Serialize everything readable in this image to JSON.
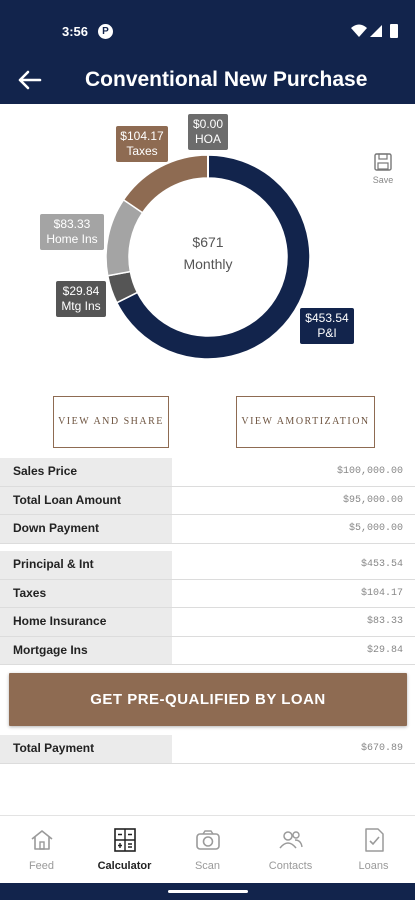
{
  "status_bar": {
    "time": "3:56",
    "app_icon": "P"
  },
  "header": {
    "title": "Conventional New Purchase"
  },
  "chart_data": {
    "type": "pie",
    "style": "donut",
    "center_value": "$671",
    "center_label": "Monthly",
    "slices": [
      {
        "name": "P&I",
        "label": "$453.54",
        "value": 453.54,
        "color": "#12244c"
      },
      {
        "name": "Mtg Ins",
        "label": "$29.84",
        "value": 29.84,
        "color": "#555555"
      },
      {
        "name": "Home Ins",
        "label": "$83.33",
        "value": 83.33,
        "color": "#a4a4a4"
      },
      {
        "name": "Taxes",
        "label": "$104.17",
        "value": 104.17,
        "color": "#8e6b52"
      },
      {
        "name": "HOA",
        "label": "$0.00",
        "value": 0.0,
        "color": "#6c6c6c"
      }
    ]
  },
  "save": {
    "label": "Save"
  },
  "actions": {
    "share_label": "VIEW AND SHARE",
    "amort_label": "VIEW AMORTIZATION"
  },
  "loan_table": [
    {
      "label": "Sales Price",
      "value": "$100,000.00"
    },
    {
      "label": "Total Loan Amount",
      "value": "$95,000.00"
    },
    {
      "label": "Down Payment",
      "value": "$5,000.00"
    }
  ],
  "payment_table": [
    {
      "label": "Principal & Int",
      "value": "$453.54"
    },
    {
      "label": "Taxes",
      "value": "$104.17"
    },
    {
      "label": "Home Insurance",
      "value": "$83.33"
    },
    {
      "label": "Mortgage Ins",
      "value": "$29.84"
    }
  ],
  "cta": {
    "label": "GET PRE-QUALIFIED BY LOAN"
  },
  "total": {
    "label": "Total Payment",
    "value": "$670.89"
  },
  "nav": {
    "feed": "Feed",
    "calculator": "Calculator",
    "scan": "Scan",
    "contacts": "Contacts",
    "loans": "Loans"
  },
  "colors": {
    "primary": "#12244c",
    "accent": "#8e6b52"
  }
}
